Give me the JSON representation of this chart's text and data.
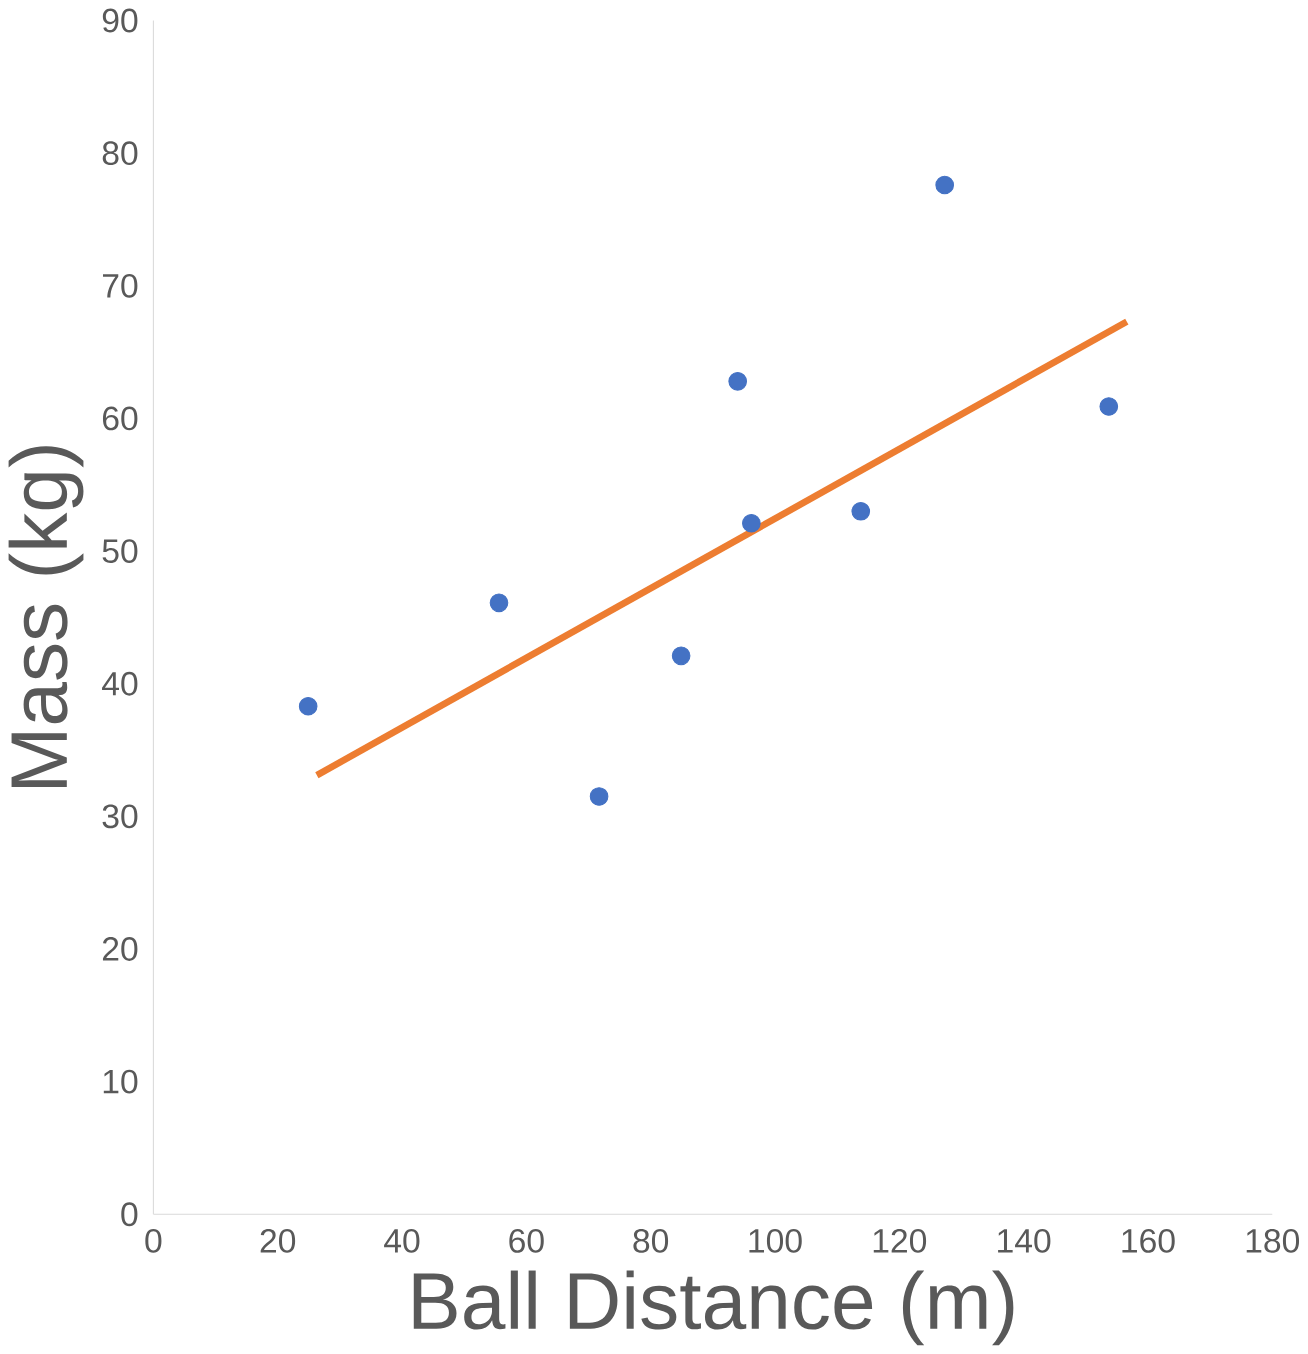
{
  "chart_data": {
    "type": "scatter",
    "xlabel": "Ball Distance (m)",
    "ylabel": "Mass (kg)",
    "xlim": [
      0,
      180
    ],
    "ylim": [
      0,
      90
    ],
    "xticks": [
      0,
      20,
      40,
      60,
      80,
      100,
      120,
      140,
      160,
      180
    ],
    "yticks": [
      0,
      10,
      20,
      30,
      40,
      50,
      60,
      70,
      80,
      90
    ],
    "grid": false,
    "series": [
      {
        "marker": "circle",
        "color": "#4472c4",
        "x": [
          24.9,
          55.6,
          71.7,
          84.9,
          94.0,
          96.2,
          113.8,
          127.3,
          153.7
        ],
        "values": [
          38.3,
          46.1,
          31.5,
          42.1,
          62.8,
          52.1,
          53.0,
          77.6,
          60.9
        ]
      },
      {
        "type": "line",
        "marker": "none",
        "color": "#ed7d31",
        "line_style": "solid",
        "x": [
          26.3,
          156.6
        ],
        "values": [
          33.1,
          67.3
        ]
      }
    ]
  }
}
